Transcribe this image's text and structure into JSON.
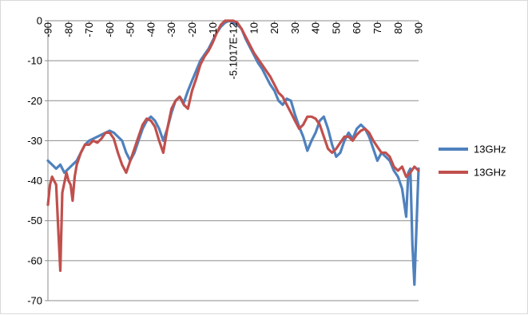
{
  "chart_data": {
    "type": "line",
    "xlabel": "",
    "ylabel": "",
    "xlim": [
      -90,
      90
    ],
    "ylim": [
      -70,
      0
    ],
    "x_ticks": [
      "-90",
      "-80",
      "-70",
      "-60",
      "-50",
      "-40",
      "-30",
      "-20",
      "-10",
      "-5.1017E-12",
      "10",
      "20",
      "30",
      "40",
      "50",
      "60",
      "70",
      "80",
      "90"
    ],
    "y_ticks": [
      "0",
      "-10",
      "-20",
      "-30",
      "-40",
      "-50",
      "-60",
      "-70"
    ],
    "grid": "horizontal",
    "legend_position": "right",
    "series": [
      {
        "name": "13GHz",
        "color": "#4f81bd",
        "x": [
          -90,
          -88,
          -86,
          -84,
          -82,
          -80,
          -78,
          -76,
          -74,
          -72,
          -70,
          -68,
          -66,
          -64,
          -62,
          -60,
          -58,
          -56,
          -54,
          -52,
          -50,
          -48,
          -46,
          -44,
          -42,
          -40,
          -38,
          -36,
          -34,
          -32,
          -30,
          -28,
          -26,
          -24,
          -22,
          -20,
          -18,
          -16,
          -14,
          -12,
          -10,
          -8,
          -6,
          -4,
          -2,
          0,
          2,
          4,
          6,
          8,
          10,
          12,
          14,
          16,
          18,
          20,
          22,
          24,
          26,
          28,
          30,
          32,
          34,
          36,
          38,
          40,
          42,
          44,
          46,
          48,
          50,
          52,
          54,
          56,
          58,
          60,
          62,
          64,
          66,
          68,
          70,
          72,
          74,
          76,
          78,
          80,
          82,
          84,
          85,
          86,
          87,
          88,
          90
        ],
        "y": [
          -35,
          -36,
          -37,
          -36,
          -38,
          -37,
          -36,
          -35,
          -33,
          -31,
          -30,
          -29.5,
          -29,
          -28.5,
          -28,
          -27.5,
          -28,
          -29,
          -30,
          -33,
          -35,
          -33,
          -30,
          -27,
          -25,
          -24,
          -25,
          -27,
          -30,
          -27,
          -23,
          -20,
          -19,
          -20.5,
          -17.5,
          -15,
          -12.5,
          -10,
          -8.5,
          -7,
          -5,
          -3,
          -1.5,
          -0.5,
          0,
          -0.5,
          -1,
          -2,
          -4.5,
          -6.5,
          -8.5,
          -10.5,
          -12,
          -14,
          -16,
          -17.5,
          -20,
          -21,
          -19.5,
          -20,
          -23.5,
          -26.5,
          -29,
          -32.5,
          -30,
          -28,
          -25,
          -24,
          -27,
          -31,
          -34,
          -33,
          -30,
          -28,
          -29.5,
          -27,
          -26,
          -27,
          -29,
          -32,
          -35,
          -33,
          -34,
          -35,
          -37.5,
          -39,
          -42,
          -49,
          -38,
          -37,
          -56,
          -66,
          -37
        ]
      },
      {
        "name": "13GHz",
        "color": "#c0504d",
        "x": [
          -90,
          -89,
          -88,
          -87,
          -86,
          -85,
          -84,
          -83,
          -82,
          -81,
          -80,
          -79,
          -78,
          -77,
          -76,
          -74,
          -72,
          -70,
          -68,
          -66,
          -64,
          -62,
          -60,
          -58,
          -56,
          -54,
          -52,
          -50,
          -48,
          -46,
          -44,
          -42,
          -40,
          -38,
          -36,
          -34,
          -32,
          -30,
          -28,
          -26,
          -24,
          -22,
          -20,
          -18,
          -16,
          -14,
          -12,
          -10,
          -8,
          -6,
          -4,
          -2,
          0,
          2,
          4,
          6,
          8,
          10,
          12,
          14,
          16,
          18,
          20,
          22,
          24,
          26,
          28,
          30,
          32,
          34,
          36,
          38,
          40,
          42,
          44,
          46,
          48,
          50,
          52,
          54,
          56,
          58,
          60,
          62,
          64,
          66,
          68,
          70,
          72,
          74,
          76,
          78,
          80,
          82,
          84,
          86,
          88,
          90
        ],
        "y": [
          -46,
          -41,
          -39,
          -40,
          -41,
          -52,
          -62.5,
          -43,
          -40.5,
          -38,
          -40,
          -41,
          -45,
          -39,
          -36,
          -33,
          -31,
          -31,
          -30,
          -30.5,
          -29.5,
          -28,
          -28,
          -29.5,
          -33,
          -36,
          -38,
          -35,
          -32,
          -29,
          -26,
          -24.5,
          -25,
          -26.5,
          -30,
          -33,
          -27,
          -22,
          -20,
          -19,
          -21,
          -22,
          -17.5,
          -14.5,
          -11,
          -9,
          -7.5,
          -5.5,
          -3,
          -1,
          0,
          0,
          0,
          -0.5,
          -2,
          -4,
          -6,
          -8,
          -9.5,
          -11,
          -12.5,
          -14,
          -16,
          -18,
          -19,
          -21,
          -23,
          -25,
          -27,
          -26,
          -24,
          -24,
          -24.5,
          -26,
          -29,
          -32,
          -33,
          -32,
          -30.5,
          -29,
          -29,
          -30,
          -28.5,
          -27.5,
          -27,
          -28,
          -30,
          -31.5,
          -33,
          -33,
          -34,
          -36.5,
          -37.5,
          -36.5,
          -39,
          -38,
          -36.5,
          -37.5
        ]
      }
    ]
  }
}
